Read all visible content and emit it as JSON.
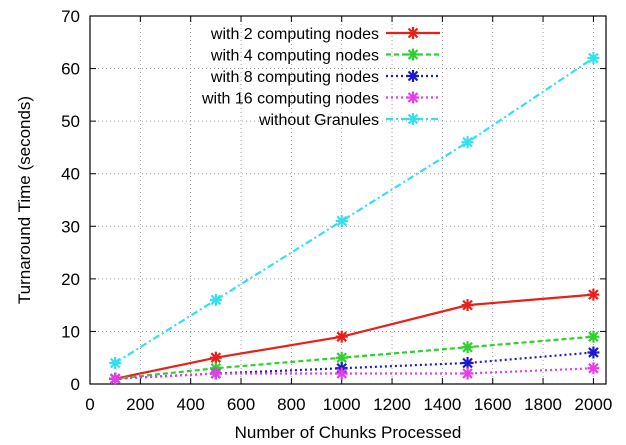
{
  "chart_data": {
    "type": "line",
    "xlabel": "Number of Chunks Processed",
    "ylabel": "Turnaround Time (seconds)",
    "xlim": [
      0,
      2050
    ],
    "ylim": [
      0,
      70
    ],
    "xticks": [
      0,
      200,
      400,
      600,
      800,
      1000,
      1200,
      1400,
      1600,
      1800,
      2000
    ],
    "yticks": [
      0,
      10,
      20,
      30,
      40,
      50,
      60,
      70
    ],
    "grid": true,
    "legend_position": "top-left",
    "x": [
      100,
      500,
      1000,
      1500,
      2000
    ],
    "series": [
      {
        "name": "with 2 computing nodes",
        "values": [
          1,
          5,
          9,
          15,
          17
        ],
        "color": "#e8201a",
        "dash": "solid"
      },
      {
        "name": "with 4 computing nodes",
        "values": [
          1,
          3,
          5,
          7,
          9
        ],
        "color": "#2ed12e",
        "dash": "dashed"
      },
      {
        "name": "with 8 computing nodes",
        "values": [
          1,
          2,
          3,
          4,
          6
        ],
        "color": "#1a1acc",
        "dash": "dotted"
      },
      {
        "name": "with 16 computing nodes",
        "values": [
          1,
          2,
          2,
          2,
          3
        ],
        "color": "#e83ce8",
        "dash": "dotted"
      },
      {
        "name": "without Granules",
        "values": [
          4,
          16,
          31,
          46,
          62
        ],
        "color": "#33e0ee",
        "dash": "dashdot"
      }
    ]
  }
}
